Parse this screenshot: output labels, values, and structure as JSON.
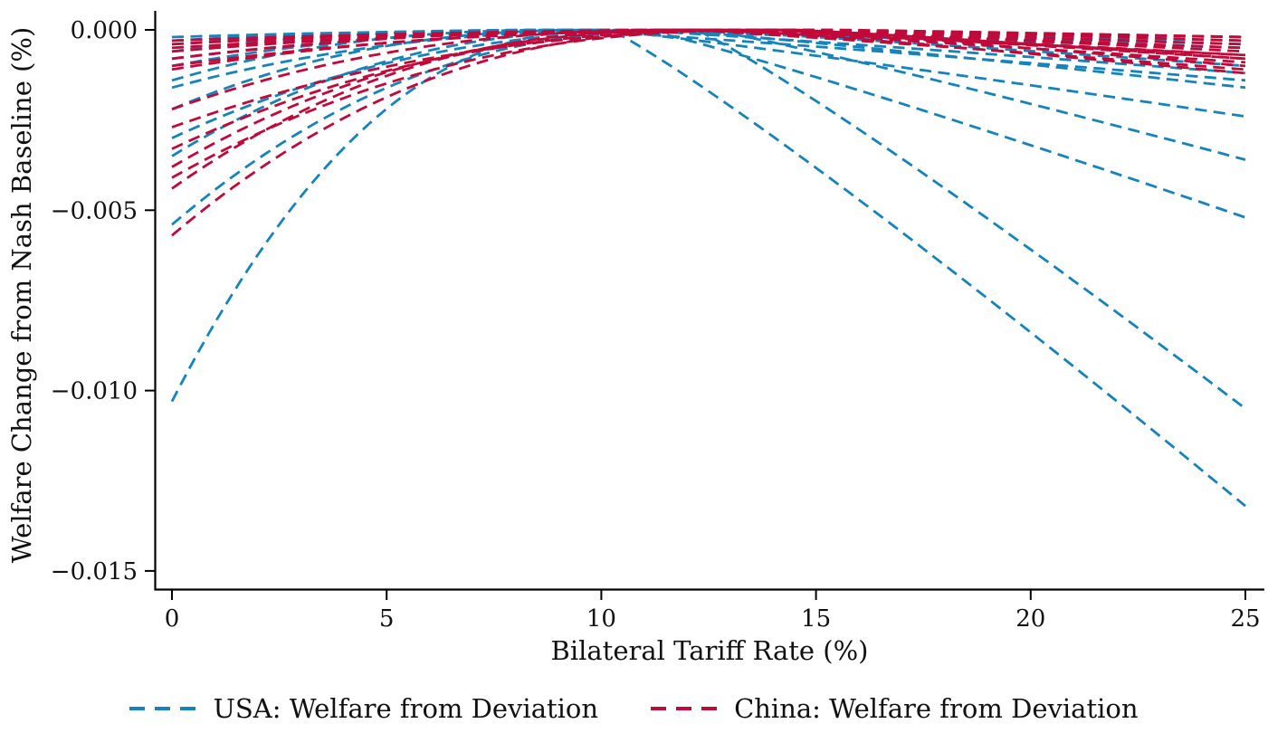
{
  "figure": {
    "background": "#ffffff",
    "axis_color": "#000000"
  },
  "chart_data": {
    "type": "line",
    "line_style": "dashed",
    "title": "",
    "xlabel": "Bilateral Tariff Rate (%)",
    "ylabel": "Welfare Change from Nash Baseline (%)",
    "xlim": [
      0,
      25
    ],
    "ylim": [
      -0.0155,
      0.0005
    ],
    "xticks": [
      {
        "value": 0,
        "label": "0"
      },
      {
        "value": 5,
        "label": "5"
      },
      {
        "value": 10,
        "label": "10"
      },
      {
        "value": 15,
        "label": "15"
      },
      {
        "value": 20,
        "label": "20"
      },
      {
        "value": 25,
        "label": "25"
      }
    ],
    "yticks": [
      {
        "value": 0.0,
        "label": "0.000"
      },
      {
        "value": -0.005,
        "label": "−0.005"
      },
      {
        "value": -0.01,
        "label": "−0.010"
      },
      {
        "value": -0.015,
        "label": "−0.015"
      }
    ],
    "grid": false,
    "legend_position": "bottom-center",
    "curve_model": "Each dashed curve is welfare from deviating to a bilateral tariff t, relative to the Nash baseline; it peaks at 0 at tariff peak_t. w(t)=w0*((peak_t-t)/peak_t)^2.3 for t<peak_t and w(t)=w25*((t-peak_t)/(25-peak_t))^1.1 for t>peak_t",
    "series": [
      {
        "name": "USA: Welfare from Deviation",
        "color": "#1583bc",
        "curves": [
          {
            "w0": -0.0103,
            "peak_t": 10.2,
            "w25": -0.0132
          },
          {
            "w0": -0.0054,
            "peak_t": 12.2,
            "w25": -0.0105
          },
          {
            "w0": -0.0035,
            "peak_t": 11.0,
            "w25": -0.0052
          },
          {
            "w0": -0.003,
            "peak_t": 12.5,
            "w25": -0.0036
          },
          {
            "w0": -0.0022,
            "peak_t": 10.0,
            "w25": -0.0024
          },
          {
            "w0": -0.0016,
            "peak_t": 11.5,
            "w25": -0.0016
          },
          {
            "w0": -0.0014,
            "peak_t": 9.2,
            "w25": -0.0014
          },
          {
            "w0": -0.001,
            "peak_t": 10.5,
            "w25": -0.0012
          },
          {
            "w0": -0.0008,
            "peak_t": 12.0,
            "w25": -0.001
          },
          {
            "w0": -0.0006,
            "peak_t": 9.0,
            "w25": -0.0005
          },
          {
            "w0": -0.0004,
            "peak_t": 11.0,
            "w25": -0.0004
          },
          {
            "w0": -0.0003,
            "peak_t": 10.0,
            "w25": -0.0003
          },
          {
            "w0": -0.0002,
            "peak_t": 12.5,
            "w25": -0.0002
          }
        ]
      },
      {
        "name": "China: Welfare from Deviation",
        "color": "#c1093a",
        "curves": [
          {
            "w0": -0.0057,
            "peak_t": 13.0,
            "w25": -0.0012
          },
          {
            "w0": -0.0044,
            "peak_t": 12.0,
            "w25": -0.0011
          },
          {
            "w0": -0.0041,
            "peak_t": 14.0,
            "w25": -0.001
          },
          {
            "w0": -0.0038,
            "peak_t": 12.5,
            "w25": -0.0009
          },
          {
            "w0": -0.0033,
            "peak_t": 13.5,
            "w25": -0.0008
          },
          {
            "w0": -0.0027,
            "peak_t": 14.5,
            "w25": -0.0008
          },
          {
            "w0": -0.0022,
            "peak_t": 12.0,
            "w25": -0.0007
          },
          {
            "w0": -0.0011,
            "peak_t": 13.0,
            "w25": -0.0007
          },
          {
            "w0": -0.001,
            "peak_t": 14.0,
            "w25": -0.0006
          },
          {
            "w0": -0.0008,
            "peak_t": 12.5,
            "w25": -0.0005
          },
          {
            "w0": -0.0006,
            "peak_t": 13.5,
            "w25": -0.0004
          },
          {
            "w0": -0.0005,
            "peak_t": 15.0,
            "w25": -0.0003
          },
          {
            "w0": -0.0004,
            "peak_t": 14.0,
            "w25": -0.0002
          },
          {
            "w0": -0.0003,
            "peak_t": 15.5,
            "w25": -0.0002
          }
        ]
      }
    ]
  }
}
